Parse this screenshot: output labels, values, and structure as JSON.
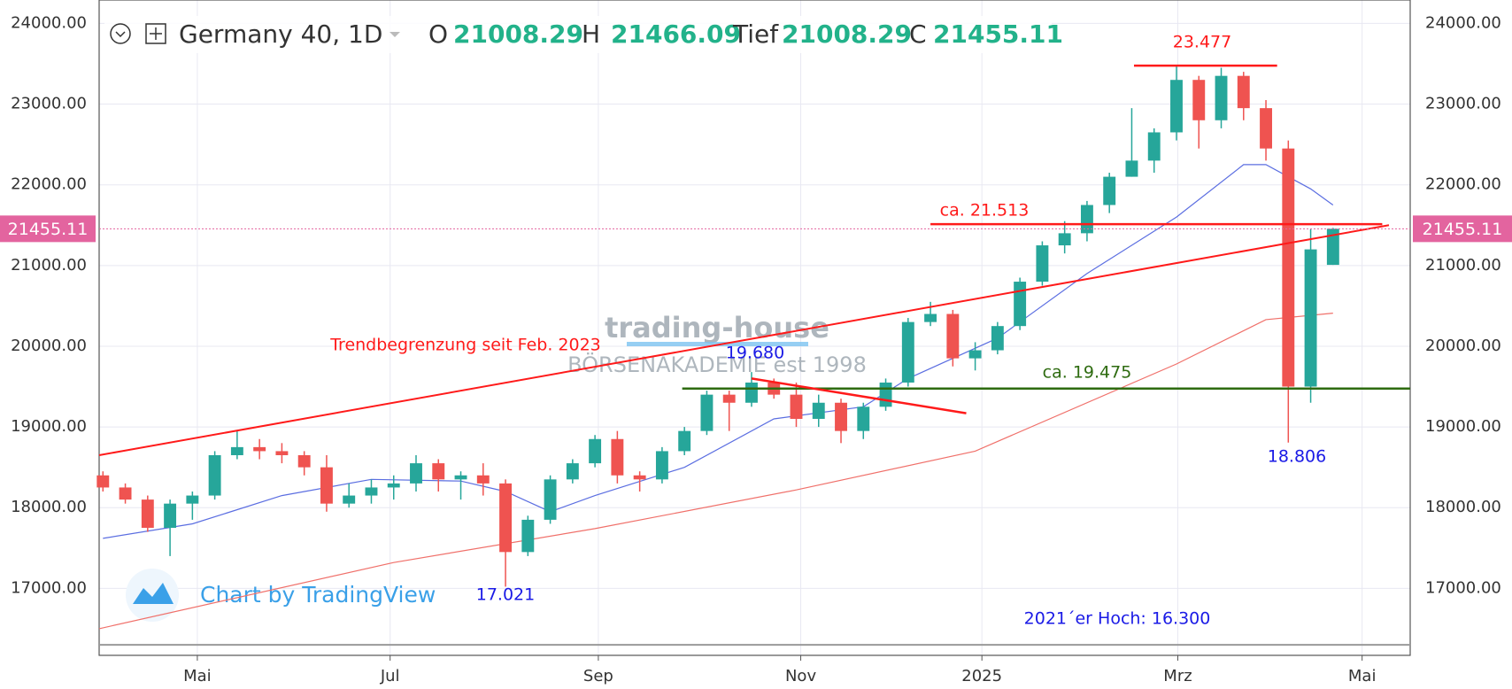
{
  "chart_data": {
    "type": "candlestick",
    "title": "Germany 40, 1D",
    "header": {
      "labels": [
        "O",
        "H",
        "Tief",
        "C"
      ],
      "values": [
        21008.29,
        21466.09,
        21008.29,
        21455.11
      ]
    },
    "categories": [
      null,
      null,
      null,
      null,
      null,
      null,
      null,
      null,
      null,
      null,
      null,
      null,
      null,
      null,
      null,
      null,
      null,
      null,
      null,
      null,
      null,
      null,
      null,
      null,
      null,
      null,
      null,
      null,
      null,
      null,
      null,
      null,
      null,
      null,
      null,
      null,
      null,
      null,
      null,
      null,
      null,
      null,
      null,
      null,
      null,
      null,
      null,
      null,
      null,
      null,
      null,
      null,
      null,
      null,
      null,
      null
    ],
    "open": [
      18400,
      18250,
      18100,
      17750,
      18050,
      18150,
      18650,
      18750,
      18700,
      18650,
      18500,
      18050,
      18150,
      18250,
      18300,
      18550,
      18350,
      18400,
      18300,
      17450,
      17850,
      18350,
      18550,
      18850,
      18400,
      18350,
      18700,
      18950,
      19400,
      19300,
      19550,
      19400,
      19100,
      19300,
      18950,
      19250,
      19550,
      20300,
      20400,
      19850,
      19950,
      20250,
      20800,
      21250,
      21400,
      21750,
      22100,
      22300,
      22650,
      23300,
      22800,
      23350,
      22950,
      22450,
      19500,
      21008
    ],
    "high": [
      18450,
      18300,
      18150,
      18100,
      18200,
      18700,
      18950,
      18850,
      18800,
      18700,
      18650,
      18300,
      18350,
      18400,
      18650,
      18600,
      18450,
      18550,
      18350,
      17900,
      18400,
      18600,
      18900,
      18950,
      18450,
      18750,
      19000,
      19450,
      19450,
      19680,
      19600,
      19550,
      19400,
      19350,
      19300,
      19600,
      20350,
      20550,
      20450,
      20050,
      20300,
      20850,
      21300,
      21550,
      21800,
      22150,
      22950,
      22700,
      23477,
      23350,
      23450,
      23400,
      23050,
      22550,
      21450,
      21466
    ],
    "low": [
      18200,
      18050,
      17700,
      17400,
      17850,
      18100,
      18600,
      18600,
      18550,
      18400,
      17950,
      18000,
      18050,
      18100,
      18200,
      18200,
      18100,
      18150,
      17021,
      17400,
      17800,
      18300,
      18500,
      18300,
      18200,
      18300,
      18650,
      18900,
      18950,
      19250,
      19350,
      19000,
      19000,
      18800,
      18850,
      19200,
      19500,
      20250,
      19750,
      19700,
      19900,
      20200,
      20750,
      21150,
      21300,
      21650,
      22100,
      22150,
      22550,
      22450,
      22700,
      22800,
      22300,
      18806,
      19300,
      21008
    ],
    "close": [
      18250,
      18100,
      17750,
      18050,
      18150,
      18650,
      18750,
      18700,
      18650,
      18500,
      18050,
      18150,
      18250,
      18300,
      18550,
      18350,
      18400,
      18300,
      17450,
      17850,
      18350,
      18550,
      18850,
      18400,
      18350,
      18700,
      18950,
      19400,
      19300,
      19550,
      19400,
      19100,
      19300,
      18950,
      19250,
      19550,
      20300,
      20400,
      19850,
      19950,
      20250,
      20800,
      21250,
      21400,
      21750,
      22100,
      22300,
      22650,
      23300,
      22800,
      23350,
      22950,
      22450,
      19500,
      21200,
      21455.11
    ],
    "up_color": "#26a69a",
    "down_color": "#ef5350",
    "lines": [
      {
        "color": "#5b6ee1",
        "x": [
          0,
          4,
          8,
          12,
          16,
          18,
          20,
          22,
          26,
          30,
          34,
          36,
          40,
          44,
          48,
          51,
          52,
          54,
          55
        ],
        "values": [
          17620,
          17800,
          18150,
          18350,
          18330,
          18200,
          17950,
          18150,
          18500,
          19100,
          19250,
          19600,
          20100,
          20900,
          21600,
          22250,
          22250,
          21950,
          21750
        ]
      },
      {
        "color": "#f0706a",
        "x": [
          -0.17,
          13,
          22,
          31,
          39,
          48,
          52,
          55
        ],
        "values": [
          16500,
          17320,
          17740,
          18220,
          18700,
          19780,
          20330,
          20410
        ]
      }
    ],
    "annotations": [
      {
        "x": [
          -0.17,
          57.5
        ],
        "y": [
          18650,
          21500
        ],
        "color": "#ff1a1a",
        "width": 2
      },
      {
        "x": [
          37.0,
          57.2
        ],
        "y": [
          21513,
          21513
        ],
        "color": "#ff1a1a",
        "width": 2.5,
        "label": "ca. 21.513"
      },
      {
        "x": [
          46.1,
          52.5
        ],
        "y": [
          23477,
          23477
        ],
        "color": "#ff1a1a",
        "width": 2.5,
        "label": "23.477"
      },
      {
        "x": [
          25.9,
          58.45
        ],
        "y": [
          19475,
          19475
        ],
        "color": "#2e6b10",
        "width": 2.5,
        "label": "ca. 19.475"
      },
      {
        "x": [
          29.0,
          38.6
        ],
        "y": [
          19600,
          19170
        ],
        "color": "#ff1a1a",
        "width": 2.5
      },
      {
        "x": [
          -0.17,
          58.45
        ],
        "y": [
          16300,
          16300
        ],
        "color": "#999999",
        "width": 2,
        "label": "2021´er Hoch: 16.300"
      }
    ],
    "notes": [
      {
        "text": "Trendbegrenzung seit Feb. 2023",
        "color": "#ff1a1a"
      },
      {
        "text": "19.680",
        "color": "#1a1ae6"
      },
      {
        "text": "17.021",
        "color": "#1a1ae6"
      },
      {
        "text": "18.806",
        "color": "#1a1ae6"
      }
    ],
    "watermark": [
      "trading-house",
      "BÖRSENAKADEMIE est 1998",
      "Chart by TradingView"
    ],
    "last_color": "#e3649f",
    "xlim": [
      -0.17,
      58.45
    ],
    "xticks": [
      {
        "value": 4.22,
        "label": "Mai"
      },
      {
        "value": 12.84,
        "label": "Jul"
      },
      {
        "value": 22.15,
        "label": "Sep"
      },
      {
        "value": 31.2,
        "label": "Nov"
      },
      {
        "value": 39.3,
        "label": "2025"
      },
      {
        "value": 48.06,
        "label": "Mrz"
      },
      {
        "value": 56.3,
        "label": "Mai"
      }
    ],
    "ylim": [
      16170,
      24290
    ],
    "yticks": [
      {
        "value": 17000,
        "label": "17000.00"
      },
      {
        "value": 18000,
        "label": "18000.00"
      },
      {
        "value": 19000,
        "label": "19000.00"
      },
      {
        "value": 20000,
        "label": "20000.00"
      },
      {
        "value": 21000,
        "label": "21000.00"
      },
      {
        "value": 22000,
        "label": "22000.00"
      },
      {
        "value": 23000,
        "label": "23000.00"
      },
      {
        "value": 24000,
        "label": "24000.00"
      }
    ],
    "grid": true
  }
}
